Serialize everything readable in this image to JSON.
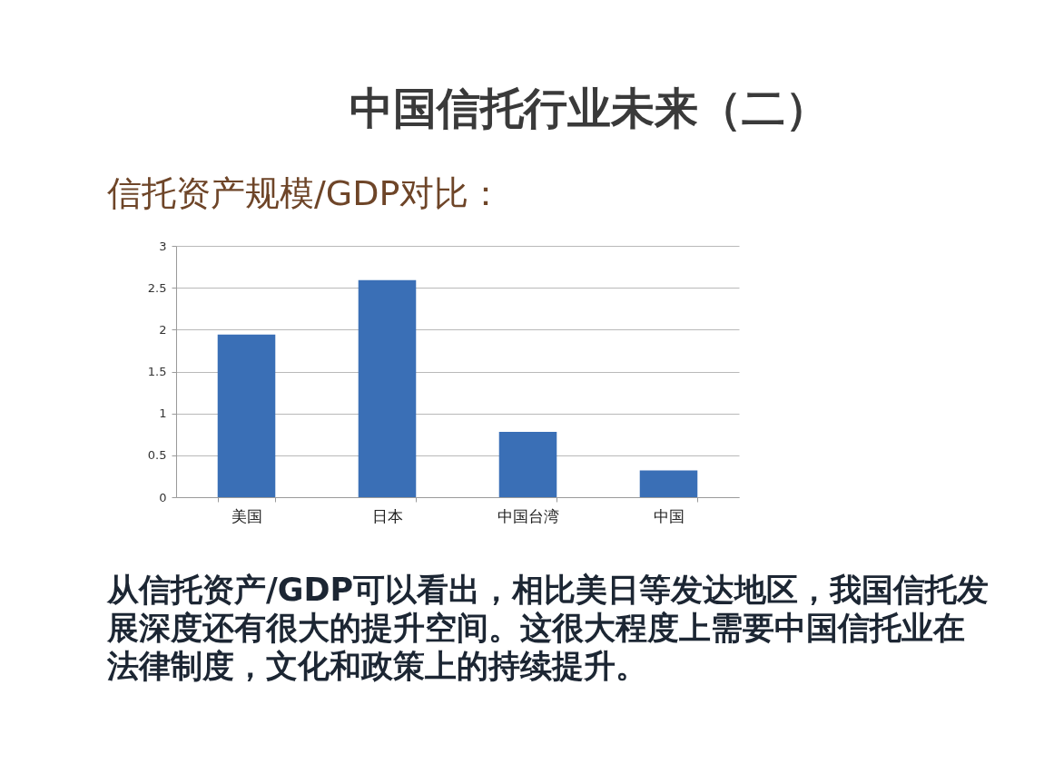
{
  "chart_data": {
    "type": "bar",
    "title": "中国信托行业未来（二）",
    "subtitle": "信托资产规模/GDP对比：",
    "categories": [
      "美国",
      "日本",
      "中国台湾",
      "中国"
    ],
    "values": [
      1.94,
      2.59,
      0.78,
      0.32
    ],
    "color": "#3a6fb6",
    "ylim": [
      0,
      3
    ],
    "yticks": [
      0,
      0.5,
      1,
      1.5,
      2,
      2.5,
      3
    ],
    "grid": "y",
    "annotations": [
      "从信托资产/GDP可以看出，相比美日等发达地区，我国信托发展深度还有很大的提升空间。这很大程度上需要中国信托业在法律制度，文化和政策上的持续提升。"
    ]
  }
}
